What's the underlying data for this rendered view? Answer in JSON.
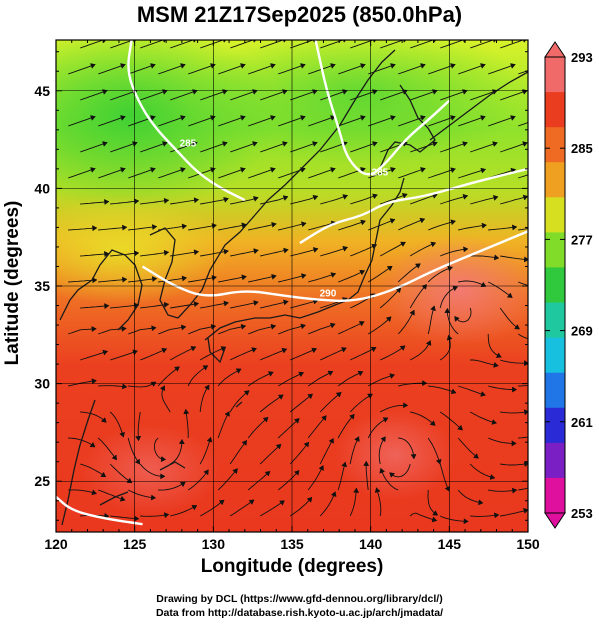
{
  "title": "MSM 21Z17Sep2025 (850.0hPa)",
  "x_axis": {
    "label": "Longitude (degrees)",
    "ticks": [
      "120",
      "125",
      "130",
      "135",
      "140",
      "145",
      "150"
    ],
    "range": [
      120,
      150
    ]
  },
  "y_axis": {
    "label": "Latitude  (degrees)",
    "ticks": [
      "25",
      "30",
      "35",
      "40",
      "45"
    ],
    "range": [
      22.4,
      47.6
    ]
  },
  "colorbar": {
    "ticks": [
      "293",
      "285",
      "277",
      "269",
      "261",
      "253"
    ],
    "range": [
      253,
      293
    ],
    "colors": [
      "#e0109e",
      "#7a1fc4",
      "#2a2ad6",
      "#2076e6",
      "#18c0e0",
      "#20c8a0",
      "#30c83c",
      "#80dc28",
      "#d6e020",
      "#f0a020",
      "#ef6a22",
      "#ea3c1e",
      "#f06a6a"
    ]
  },
  "contours": [
    {
      "label": "285",
      "points": [
        [
          124.8,
          47.6
        ],
        [
          124.5,
          46
        ],
        [
          125.2,
          44.5
        ],
        [
          126.2,
          43.2
        ],
        [
          127.6,
          42
        ],
        [
          129,
          40.8
        ],
        [
          130.5,
          40
        ],
        [
          132,
          39.4
        ]
      ]
    },
    {
      "label": "285",
      "points": [
        [
          136.5,
          47.6
        ],
        [
          137.2,
          45
        ],
        [
          138,
          43
        ],
        [
          138.5,
          41.5
        ],
        [
          139.8,
          40.5
        ],
        [
          141,
          41.3
        ],
        [
          142.2,
          42.5
        ],
        [
          143.8,
          43.6
        ],
        [
          145,
          44.5
        ]
      ]
    },
    {
      "label": "290",
      "points": [
        [
          125.5,
          36
        ],
        [
          127.5,
          35
        ],
        [
          129.5,
          34.4
        ],
        [
          132,
          34.8
        ],
        [
          134.5,
          34.5
        ],
        [
          136.5,
          34.3
        ],
        [
          139,
          34.2
        ],
        [
          141.5,
          34.8
        ],
        [
          144,
          35.8
        ],
        [
          147,
          36.8
        ],
        [
          150,
          37.8
        ]
      ]
    },
    {
      "label": "",
      "points": [
        [
          135.5,
          37.2
        ],
        [
          137.5,
          38.2
        ],
        [
          139.5,
          38.6
        ],
        [
          141,
          39.3
        ],
        [
          143.5,
          39.6
        ],
        [
          146.5,
          40.3
        ],
        [
          150,
          41
        ]
      ]
    },
    {
      "label": "",
      "points": [
        [
          120,
          24.2
        ],
        [
          121,
          23.5
        ],
        [
          123,
          23.1
        ],
        [
          125.5,
          22.8
        ]
      ]
    }
  ],
  "credits": {
    "line1": "Drawing by DCL (https://www.gfd-dennou.org/library/dcl/)",
    "line2": "Data from http://database.rish.kyoto-u.ac.jp/arch/jmadata/"
  }
}
